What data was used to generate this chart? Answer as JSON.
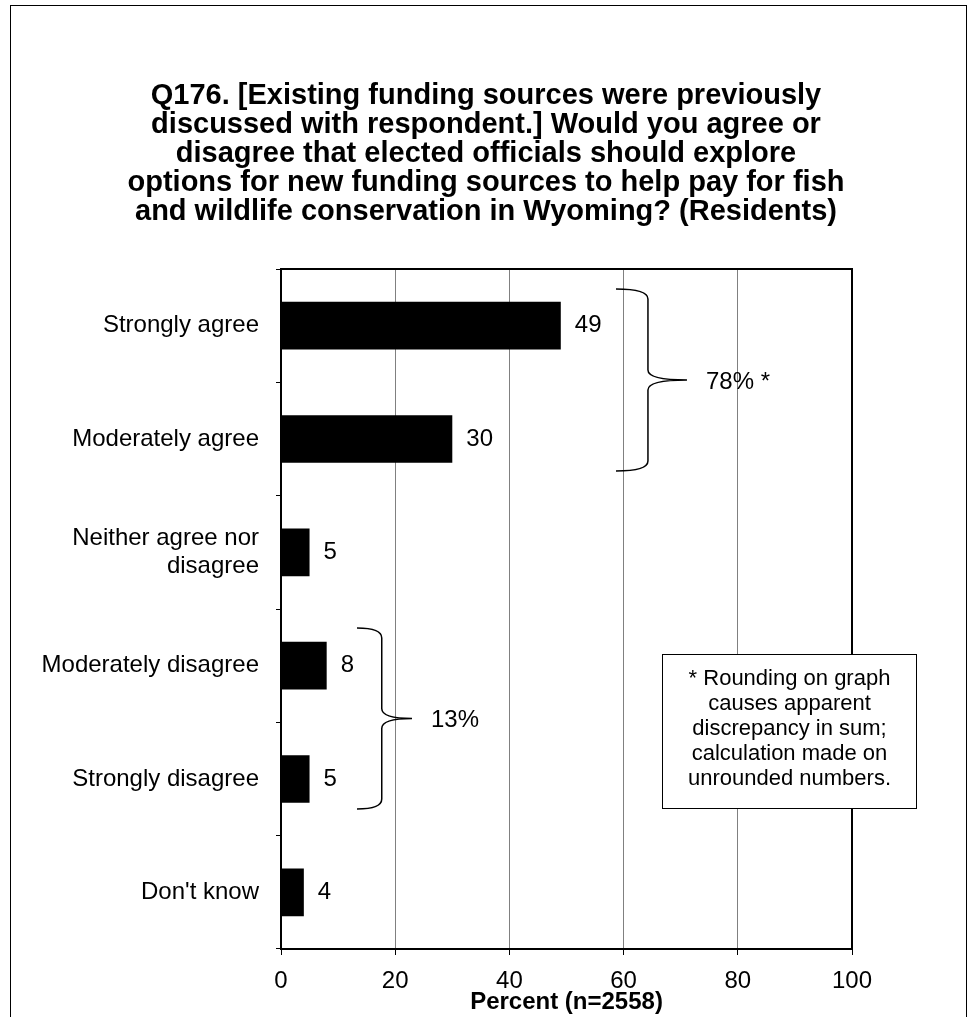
{
  "chart_data": {
    "type": "bar",
    "orientation": "horizontal",
    "title": "Q176. [Existing funding sources were previously discussed with respondent.] Would you agree or disagree that elected officials should explore options for new funding sources to help pay for fish and wildlife conservation in Wyoming? (Residents)",
    "xlabel": "Percent (n=2558)",
    "categories": [
      "Strongly agree",
      "Moderately agree",
      "Neither agree nor disagree",
      "Moderately disagree",
      "Strongly disagree",
      "Don't know"
    ],
    "values": [
      49,
      30,
      5,
      8,
      5,
      4
    ],
    "color": "#000000",
    "xlim": [
      0,
      100
    ],
    "xticks": [
      0,
      20,
      40,
      60,
      80,
      100
    ],
    "grid": "x",
    "data_labels": true,
    "annotations": [
      "78% *",
      "13%",
      "* Rounding on graph causes apparent discrepancy in sum; calculation made on unrounded numbers."
    ]
  }
}
